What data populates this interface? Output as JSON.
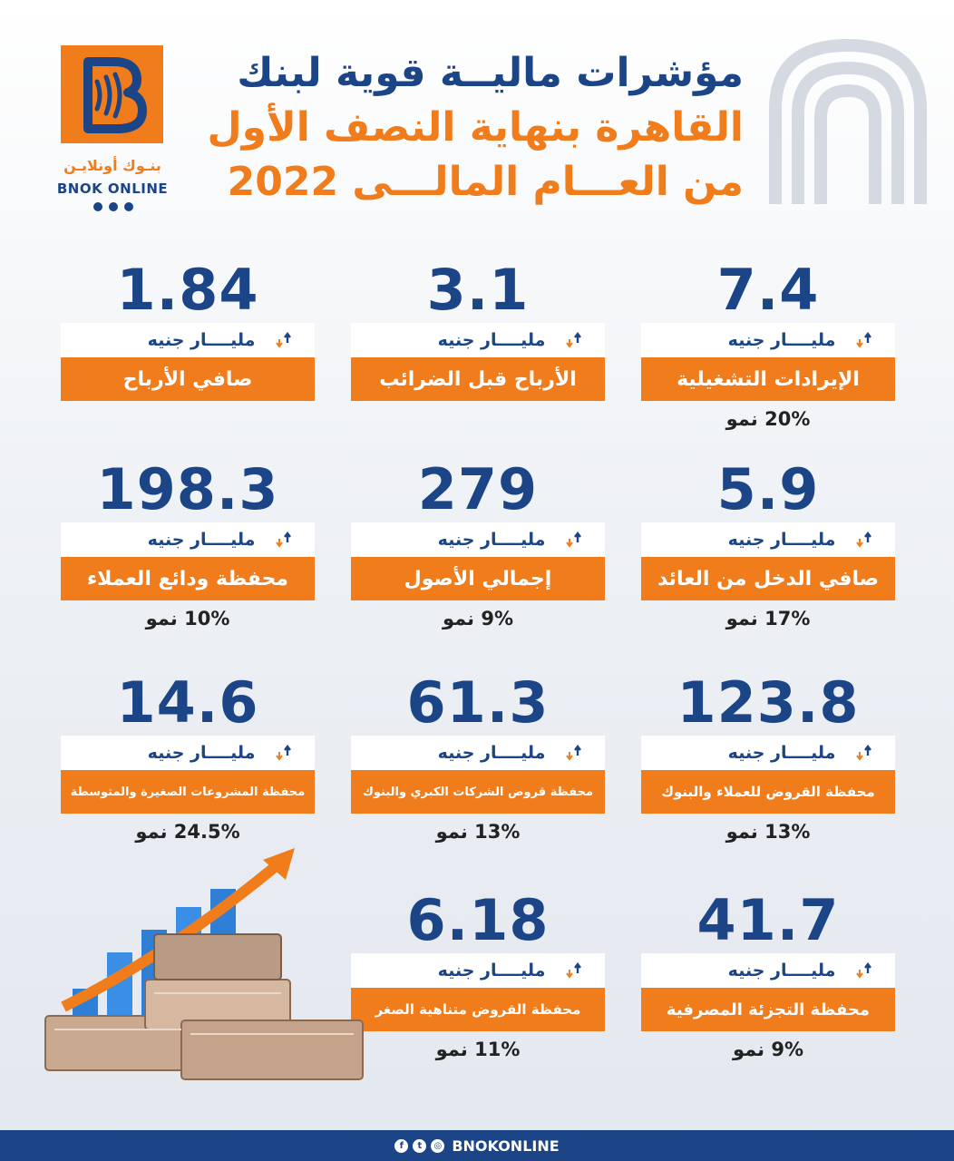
{
  "brand": {
    "ar": "بنـوك أونلايـن",
    "en": "BNOK ONLINE",
    "footer_handle": "BNOKONLINE"
  },
  "title": {
    "line1": "مؤشرات ماليــة قوية لبنك",
    "line2": "القاهرة بنهاية النصف الأول",
    "line3": "من العـــام المالـــى 2022"
  },
  "colors": {
    "brand_blue": "#1c4587",
    "brand_orange": "#f07c1c"
  },
  "cards": [
    {
      "value": "7.4",
      "unit": "مليــــار جنيه",
      "label": "الإيرادات التشغيلية",
      "growth": "20% نمو",
      "trend": "up"
    },
    {
      "value": "3.1",
      "unit": "مليــــار جنيه",
      "label": "الأرباح قبل الضرائب",
      "growth": "",
      "trend": "down"
    },
    {
      "value": "1.84",
      "unit": "مليــــار جنيه",
      "label": "صافي الأرباح",
      "growth": "",
      "trend": "down"
    },
    {
      "value": "5.9",
      "unit": "مليــــار جنيه",
      "label": "صافي الدخل من العائد",
      "growth": "17% نمو",
      "trend": "up"
    },
    {
      "value": "279",
      "unit": "مليــــار جنيه",
      "label": "إجمالي الأصول",
      "growth": "9% نمو",
      "trend": "up"
    },
    {
      "value": "198.3",
      "unit": "مليــــار جنيه",
      "label": "محفظة ودائع العملاء",
      "growth": "10% نمو",
      "trend": "up"
    },
    {
      "value": "123.8",
      "unit": "مليــــار جنيه",
      "label": "محفظة القروض للعملاء والبنوك",
      "growth": "13% نمو",
      "trend": "up"
    },
    {
      "value": "61.3",
      "unit": "مليــــار جنيه",
      "label": "محفظة قروض الشركات الكبري والبنوك",
      "growth": "13% نمو",
      "trend": "up"
    },
    {
      "value": "14.6",
      "unit": "مليــــار جنيه",
      "label": "محفظة المشروعات الصغيرة والمتوسطة",
      "growth": "24.5% نمو",
      "trend": "up"
    },
    {
      "value": "41.7",
      "unit": "مليــــار جنيه",
      "label": "محفظة التجزئة المصرفية",
      "growth": "9% نمو",
      "trend": "up"
    },
    {
      "value": "6.18",
      "unit": "مليــــار جنيه",
      "label": "محفظة القروض متناهية الصغر",
      "growth": "11% نمو",
      "trend": "up"
    }
  ],
  "footer_icons": [
    "facebook-icon",
    "twitter-icon",
    "instagram-icon"
  ]
}
